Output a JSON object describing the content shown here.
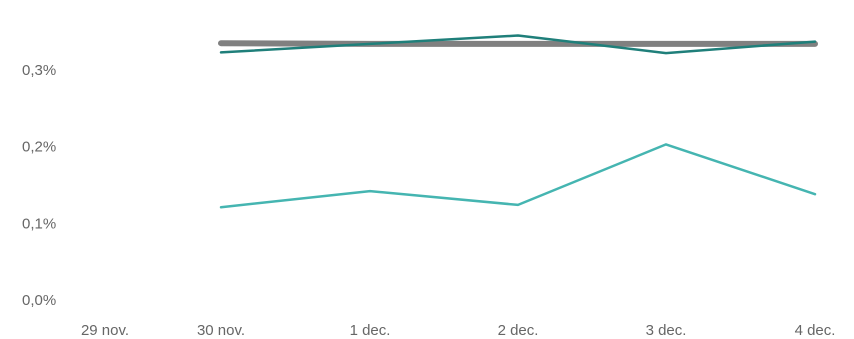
{
  "chart_data": {
    "type": "line",
    "title": "",
    "xlabel": "",
    "ylabel": "",
    "categories": [
      "29 nov.",
      "30 nov.",
      "1 dec.",
      "2 dec.",
      "3 dec.",
      "4 dec."
    ],
    "y_ticks": [
      "0,0%",
      "0,1%",
      "0,2%",
      "0,3%"
    ],
    "y_tick_values": [
      0.0,
      0.1,
      0.2,
      0.3
    ],
    "ylim": [
      0.0,
      0.3
    ],
    "grid": false,
    "legend": "none",
    "series": [
      {
        "color": "#808080",
        "values": [
          null,
          0.335,
          0.334,
          0.334,
          0.334,
          0.334
        ]
      },
      {
        "color": "#1f7f7a",
        "values": [
          null,
          0.323,
          0.334,
          0.345,
          0.322,
          0.337
        ]
      },
      {
        "color": "#45b5b1",
        "values": [
          null,
          0.121,
          0.142,
          0.124,
          0.203,
          0.138
        ]
      }
    ]
  }
}
